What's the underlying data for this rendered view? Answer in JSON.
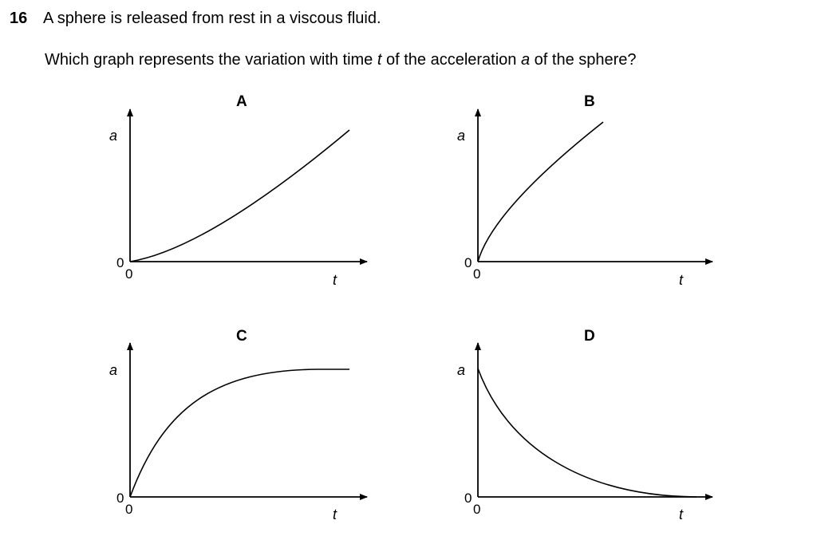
{
  "question": {
    "number": "16",
    "statement": "A sphere is released from rest in a viscous fluid.",
    "prompt_before": "Which graph represents the variation with time ",
    "time_symbol": "t",
    "prompt_middle": " of the acceleration ",
    "accel_symbol": "a",
    "prompt_after": " of the sphere?"
  },
  "graphs": [
    {
      "label": "A",
      "y_axis": "a",
      "x_axis": "t",
      "origin_y": "0",
      "origin_x": "0",
      "shape": "increasing-curving-up"
    },
    {
      "label": "B",
      "y_axis": "a",
      "x_axis": "t",
      "origin_y": "0",
      "origin_x": "0",
      "shape": "increasing-curving-down"
    },
    {
      "label": "C",
      "y_axis": "a",
      "x_axis": "t",
      "origin_y": "0",
      "origin_x": "0",
      "shape": "increasing-to-plateau"
    },
    {
      "label": "D",
      "y_axis": "a",
      "x_axis": "t",
      "origin_y": "0",
      "origin_x": "0",
      "shape": "decreasing-to-zero"
    }
  ]
}
